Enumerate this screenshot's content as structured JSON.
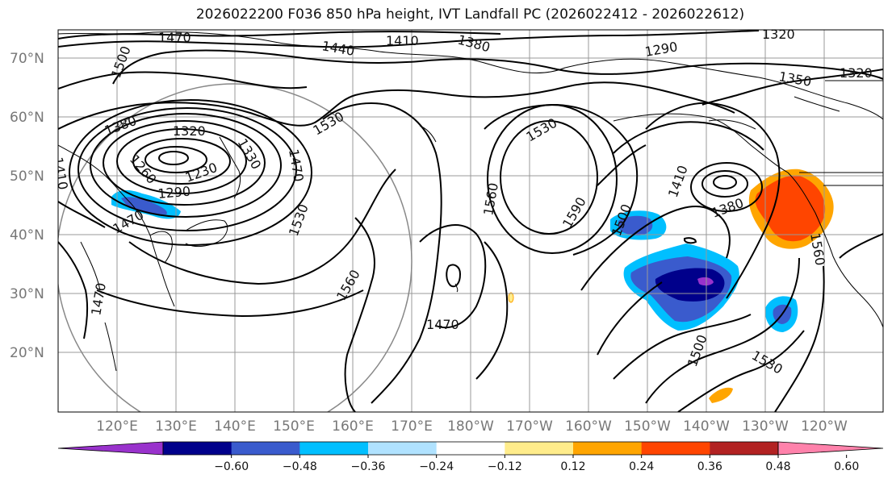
{
  "title": "2026022200 F036 850 hPa height, IVT Landfall PC (2026022412 - 2026022612)",
  "lat_labels": [
    "70°N",
    "60°N",
    "50°N",
    "40°N",
    "30°N",
    "20°N"
  ],
  "lon_labels": [
    "120°E",
    "130°E",
    "140°E",
    "150°E",
    "160°E",
    "170°E",
    "180°W",
    "170°W",
    "160°W",
    "150°W",
    "140°W",
    "130°W",
    "120°W"
  ],
  "contour_labels": [
    "1470",
    "1440",
    "1410",
    "1380",
    "1320",
    "1500",
    "1290",
    "1350",
    "1320",
    "1380",
    "1320",
    "1330",
    "1530",
    "1530",
    "1470",
    "1260",
    "1230",
    "1290",
    "1410",
    "1560",
    "1590",
    "1410",
    "1380",
    "1500",
    "1530",
    "1470",
    "1560",
    "1470",
    "1500",
    "1530",
    "1560",
    "1470"
  ],
  "colorbar": {
    "tick_labels": [
      "−0.60",
      "−0.48",
      "−0.36",
      "−0.24",
      "−0.12",
      "0.12",
      "0.24",
      "0.36",
      "0.48",
      "0.60"
    ],
    "colors": [
      "#9932cc",
      "#00008b",
      "#3a5bcd",
      "#00bfff",
      "#b0e2ff",
      "#ffffff",
      "#ffec8b",
      "#ffa500",
      "#ff4500",
      "#b22222",
      "#ff82ab"
    ]
  },
  "fill_colors": {
    "neg_strong": "#00008b",
    "neg_mid": "#3a5bcd",
    "neg_weak": "#00bfff",
    "neg_extreme": "#9932cc",
    "pos_weak": "#ffa500",
    "pos_mid": "#ff4500",
    "pos_light": "#ffec8b"
  }
}
